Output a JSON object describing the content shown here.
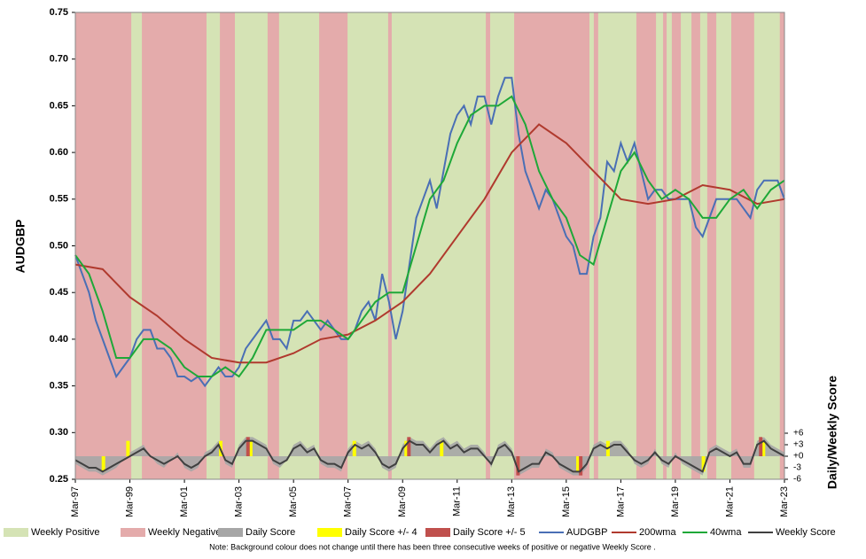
{
  "chart_data": {
    "type": "line",
    "ylabel": "AUDGBP",
    "y2label": "Daily/Weekly Score",
    "note": "Note: Background colour does not change until there has been three consecutive weeks of positive or negative Weekly Score .",
    "xlim": [
      1997.17,
      2023.17
    ],
    "xticks": [
      {
        "value": 1997.17,
        "label": "Mar-97"
      },
      {
        "value": 1999.17,
        "label": "Mar-99"
      },
      {
        "value": 2001.17,
        "label": "Mar-01"
      },
      {
        "value": 2003.17,
        "label": "Mar-03"
      },
      {
        "value": 2005.17,
        "label": "Mar-05"
      },
      {
        "value": 2007.17,
        "label": "Mar-07"
      },
      {
        "value": 2009.17,
        "label": "Mar-09"
      },
      {
        "value": 2011.17,
        "label": "Mar-11"
      },
      {
        "value": 2013.17,
        "label": "Mar-13"
      },
      {
        "value": 2015.17,
        "label": "Mar-15"
      },
      {
        "value": 2017.17,
        "label": "Mar-17"
      },
      {
        "value": 2019.17,
        "label": "Mar-19"
      },
      {
        "value": 2021.17,
        "label": "Mar-21"
      },
      {
        "value": 2023.17,
        "label": "Mar-23"
      }
    ],
    "ylim": [
      0.25,
      0.75
    ],
    "yticks": [
      {
        "value": 0.25,
        "label": "0.25"
      },
      {
        "value": 0.3,
        "label": "0.30"
      },
      {
        "value": 0.35,
        "label": "0.35"
      },
      {
        "value": 0.4,
        "label": "0.40"
      },
      {
        "value": 0.45,
        "label": "0.45"
      },
      {
        "value": 0.5,
        "label": "0.50"
      },
      {
        "value": 0.55,
        "label": "0.55"
      },
      {
        "value": 0.6,
        "label": "0.60"
      },
      {
        "value": 0.65,
        "label": "0.65"
      },
      {
        "value": 0.7,
        "label": "0.70"
      },
      {
        "value": 0.75,
        "label": "0.75"
      }
    ],
    "y2lim": [
      -6,
      115.6
    ],
    "y2ticks": [
      {
        "value": 6,
        "label": "+6"
      },
      {
        "value": 3,
        "label": "+3"
      },
      {
        "value": 0,
        "label": "+0"
      },
      -3,
      -6
    ],
    "negative_tick_color": "#ff0000",
    "background": {
      "positive": {
        "name": "Weekly Positive",
        "color": "#d5e3b5"
      },
      "negative": {
        "name": "Weekly Negative",
        "color": "#e4abab",
        "spans": [
          [
            1997.17,
            1999.22
          ],
          [
            1999.61,
            2001.98
          ],
          [
            2002.47,
            2003.02
          ],
          [
            2004.22,
            2004.64
          ],
          [
            2006.11,
            2007.15
          ],
          [
            2008.64,
            2008.77
          ],
          [
            2012.22,
            2012.38
          ],
          [
            2013.26,
            2016.02
          ],
          [
            2016.18,
            2016.34
          ],
          [
            2017.74,
            2018.46
          ],
          [
            2018.72,
            2018.85
          ],
          [
            2019.04,
            2019.37
          ],
          [
            2019.76,
            2020.08
          ],
          [
            2020.34,
            2020.67
          ],
          [
            2021.22,
            2022.06
          ],
          [
            2023.0,
            2023.17
          ]
        ]
      }
    },
    "x": [
      1997.17,
      1997.42,
      1997.67,
      1997.92,
      1998.17,
      1998.42,
      1998.67,
      1998.92,
      1999.17,
      1999.42,
      1999.67,
      1999.92,
      2000.17,
      2000.42,
      2000.67,
      2000.92,
      2001.17,
      2001.42,
      2001.67,
      2001.92,
      2002.17,
      2002.42,
      2002.67,
      2002.92,
      2003.17,
      2003.42,
      2003.67,
      2003.92,
      2004.17,
      2004.42,
      2004.67,
      2004.92,
      2005.17,
      2005.42,
      2005.67,
      2005.92,
      2006.17,
      2006.42,
      2006.67,
      2006.92,
      2007.17,
      2007.42,
      2007.67,
      2007.92,
      2008.17,
      2008.42,
      2008.67,
      2008.92,
      2009.17,
      2009.42,
      2009.67,
      2009.92,
      2010.17,
      2010.42,
      2010.67,
      2010.92,
      2011.17,
      2011.42,
      2011.67,
      2011.92,
      2012.17,
      2012.42,
      2012.67,
      2012.92,
      2013.17,
      2013.42,
      2013.67,
      2013.92,
      2014.17,
      2014.42,
      2014.67,
      2014.92,
      2015.17,
      2015.42,
      2015.67,
      2015.92,
      2016.17,
      2016.42,
      2016.67,
      2016.92,
      2017.17,
      2017.42,
      2017.67,
      2017.92,
      2018.17,
      2018.42,
      2018.67,
      2018.92,
      2019.17,
      2019.42,
      2019.67,
      2019.92,
      2020.17,
      2020.42,
      2020.67,
      2020.92,
      2021.17,
      2021.42,
      2021.67,
      2021.92,
      2022.17,
      2022.42,
      2022.67,
      2022.92,
      2023.17
    ],
    "series": [
      {
        "name": "Daily Score",
        "color": "#a6a6a6",
        "kind": "area",
        "axis": "y2",
        "values": [
          -2,
          -3,
          -4,
          -4,
          -5,
          -4,
          -3,
          -1,
          1,
          2,
          3,
          0,
          -2,
          -3,
          -1,
          1,
          -3,
          -4,
          -3,
          1,
          2,
          4,
          -2,
          -3,
          3,
          5,
          5,
          4,
          3,
          -2,
          -3,
          -1,
          3,
          4,
          2,
          3,
          -2,
          -3,
          -3,
          -4,
          2,
          4,
          3,
          4,
          2,
          -3,
          -4,
          -3,
          3,
          5,
          4,
          4,
          2,
          4,
          5,
          3,
          4,
          2,
          3,
          3,
          1,
          -3,
          3,
          4,
          2,
          -5,
          -4,
          -3,
          -3,
          2,
          1,
          -3,
          -4,
          -5,
          -5,
          -3,
          3,
          4,
          3,
          4,
          4,
          2,
          -2,
          -3,
          -2,
          2,
          -2,
          -3,
          1,
          -2,
          -3,
          -4,
          -5,
          2,
          3,
          2,
          1,
          2,
          -3,
          -3,
          4,
          5,
          3,
          2,
          1
        ]
      },
      {
        "name": "Daily Score +/- 4",
        "color": "#ffff00",
        "kind": "dots",
        "axis": "y2",
        "x": [
          1998.2,
          1999.1,
          2002.5,
          2003.6,
          2007.4,
          2009.3,
          2010.6,
          2013.4,
          2015.6,
          2016.7,
          2020.2,
          2022.4
        ],
        "values": [
          -4,
          4,
          4,
          4,
          4,
          4,
          4,
          -4,
          -4,
          4,
          -4,
          4
        ]
      },
      {
        "name": "Daily Score +/- 5",
        "color": "#c0504d",
        "kind": "dots",
        "axis": "y2",
        "x": [
          2003.5,
          2009.4,
          2013.4,
          2015.7,
          2022.3
        ],
        "values": [
          5,
          5,
          -5,
          -5,
          5
        ]
      },
      {
        "name": "AUDGBP",
        "color": "#4a6fb5",
        "kind": "line",
        "values": [
          0.49,
          0.47,
          0.45,
          0.42,
          0.4,
          0.38,
          0.36,
          0.37,
          0.38,
          0.4,
          0.41,
          0.41,
          0.39,
          0.39,
          0.38,
          0.36,
          0.36,
          0.355,
          0.36,
          0.35,
          0.36,
          0.37,
          0.36,
          0.36,
          0.37,
          0.39,
          0.4,
          0.41,
          0.42,
          0.4,
          0.4,
          0.39,
          0.42,
          0.42,
          0.43,
          0.42,
          0.41,
          0.42,
          0.41,
          0.4,
          0.4,
          0.41,
          0.43,
          0.44,
          0.42,
          0.47,
          0.44,
          0.4,
          0.43,
          0.48,
          0.53,
          0.55,
          0.57,
          0.54,
          0.58,
          0.62,
          0.64,
          0.65,
          0.63,
          0.66,
          0.66,
          0.63,
          0.66,
          0.68,
          0.68,
          0.62,
          0.58,
          0.56,
          0.54,
          0.56,
          0.55,
          0.53,
          0.51,
          0.5,
          0.47,
          0.47,
          0.51,
          0.53,
          0.59,
          0.58,
          0.61,
          0.59,
          0.61,
          0.58,
          0.55,
          0.56,
          0.56,
          0.55,
          0.55,
          0.55,
          0.55,
          0.52,
          0.51,
          0.53,
          0.55,
          0.55,
          0.55,
          0.55,
          0.54,
          0.53,
          0.56,
          0.57,
          0.57,
          0.57,
          0.55
        ]
      },
      {
        "name": "200wma",
        "color": "#b03a2e",
        "kind": "line",
        "x": [
          1997.17,
          1998.17,
          1999.17,
          2000.17,
          2001.17,
          2002.17,
          2003.17,
          2004.17,
          2005.17,
          2006.17,
          2007.17,
          2008.17,
          2009.17,
          2010.17,
          2011.17,
          2012.17,
          2013.17,
          2014.17,
          2015.17,
          2016.17,
          2017.17,
          2018.17,
          2019.17,
          2020.17,
          2021.17,
          2022.17,
          2023.17
        ],
        "values": [
          0.48,
          0.475,
          0.445,
          0.425,
          0.4,
          0.38,
          0.375,
          0.375,
          0.385,
          0.4,
          0.405,
          0.42,
          0.44,
          0.47,
          0.51,
          0.55,
          0.6,
          0.63,
          0.61,
          0.58,
          0.55,
          0.545,
          0.55,
          0.565,
          0.56,
          0.545,
          0.55
        ]
      },
      {
        "name": "40wma",
        "color": "#1ea838",
        "kind": "line",
        "x": [
          1997.17,
          1997.67,
          1998.17,
          1998.67,
          1999.17,
          1999.67,
          2000.17,
          2000.67,
          2001.17,
          2001.67,
          2002.17,
          2002.67,
          2003.17,
          2003.67,
          2004.17,
          2004.67,
          2005.17,
          2005.67,
          2006.17,
          2006.67,
          2007.17,
          2007.67,
          2008.17,
          2008.67,
          2009.17,
          2009.67,
          2010.17,
          2010.67,
          2011.17,
          2011.67,
          2012.17,
          2012.67,
          2013.17,
          2013.67,
          2014.17,
          2014.67,
          2015.17,
          2015.67,
          2016.17,
          2016.67,
          2017.17,
          2017.67,
          2018.17,
          2018.67,
          2019.17,
          2019.67,
          2020.17,
          2020.67,
          2021.17,
          2021.67,
          2022.17,
          2022.67,
          2023.17
        ],
        "values": [
          0.49,
          0.47,
          0.43,
          0.38,
          0.38,
          0.4,
          0.4,
          0.39,
          0.37,
          0.36,
          0.36,
          0.37,
          0.36,
          0.38,
          0.41,
          0.41,
          0.41,
          0.42,
          0.42,
          0.41,
          0.4,
          0.42,
          0.44,
          0.45,
          0.45,
          0.5,
          0.55,
          0.57,
          0.61,
          0.64,
          0.65,
          0.65,
          0.66,
          0.63,
          0.58,
          0.55,
          0.53,
          0.49,
          0.48,
          0.53,
          0.58,
          0.6,
          0.57,
          0.55,
          0.56,
          0.55,
          0.53,
          0.53,
          0.55,
          0.56,
          0.54,
          0.56,
          0.57
        ]
      },
      {
        "name": "Weekly Score",
        "color": "#404040",
        "kind": "line",
        "axis": "y2",
        "values": [
          -1,
          -2,
          -3,
          -3,
          -4,
          -3,
          -2,
          -1,
          0,
          1,
          2,
          0,
          -1,
          -2,
          -1,
          0,
          -2,
          -3,
          -2,
          0,
          1,
          3,
          -1,
          -2,
          2,
          4,
          4,
          3,
          2,
          -1,
          -2,
          -1,
          2,
          3,
          1,
          2,
          -1,
          -2,
          -2,
          -3,
          1,
          3,
          2,
          3,
          1,
          -2,
          -3,
          -2,
          2,
          4,
          3,
          3,
          1,
          3,
          4,
          2,
          3,
          1,
          2,
          2,
          0,
          -2,
          2,
          3,
          1,
          -4,
          -3,
          -2,
          -2,
          1,
          0,
          -2,
          -3,
          -4,
          -4,
          -2,
          2,
          3,
          2,
          3,
          3,
          1,
          -1,
          -2,
          -1,
          1,
          -1,
          -2,
          0,
          -1,
          -2,
          -3,
          -4,
          1,
          2,
          1,
          0,
          1,
          -2,
          -2,
          3,
          4,
          2,
          1,
          0
        ]
      }
    ]
  }
}
